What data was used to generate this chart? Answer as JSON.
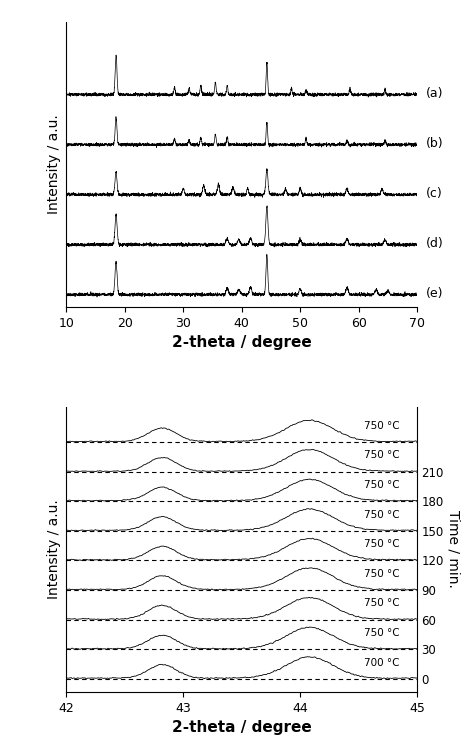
{
  "top_panel": {
    "xlim": [
      10,
      70
    ],
    "xlabel": "2-theta / degree",
    "ylabel": "Intensity / a.u.",
    "labels": [
      "(a)",
      "(b)",
      "(c)",
      "(d)",
      "(e)"
    ],
    "n_traces": 5,
    "trace_color": "black",
    "bg_color": "white",
    "xticks": [
      10,
      20,
      30,
      40,
      50,
      60,
      70
    ]
  },
  "bottom_panel": {
    "xlim": [
      42,
      45
    ],
    "xlabel": "2-theta / degree",
    "ylabel": "Intensity / a.u.",
    "ylabel2": "Time / min.",
    "n_traces": 9,
    "time_labels": [
      "0",
      "30",
      "60",
      "90",
      "120",
      "150",
      "180",
      "210"
    ],
    "temp_labels": [
      "700 °C",
      "750 °C",
      "750 °C",
      "750 °C",
      "750 °C",
      "750 °C",
      "750 °C",
      "750 °C",
      "750 °C"
    ],
    "xticks": [
      42,
      43,
      44,
      45
    ],
    "trace_color": "black",
    "dashed_color": "black",
    "bg_color": "white"
  }
}
